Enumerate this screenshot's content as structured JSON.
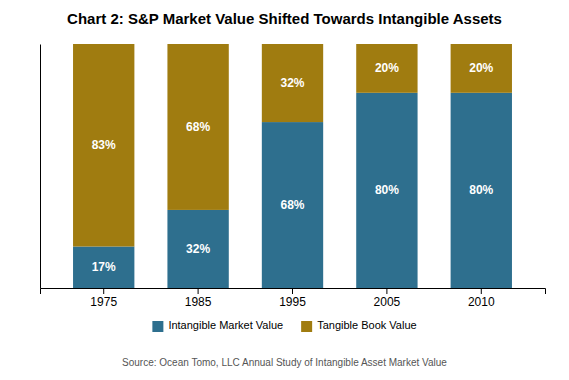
{
  "chart_data": {
    "type": "bar",
    "stacked": true,
    "title": "Chart 2: S&P Market Value Shifted Towards Intangible Assets",
    "categories": [
      "1975",
      "1985",
      "1995",
      "2005",
      "2010"
    ],
    "series": [
      {
        "name": "Intangible Market Value",
        "color": "#2e6f8e",
        "values": [
          17,
          32,
          68,
          80,
          80
        ],
        "value_labels": [
          "17%",
          "32%",
          "68%",
          "80%",
          "80%"
        ]
      },
      {
        "name": "Tangible Book Value",
        "color": "#a07c10",
        "values": [
          83,
          68,
          32,
          20,
          20
        ],
        "value_labels": [
          "83%",
          "68%",
          "32%",
          "20%",
          "20%"
        ]
      }
    ],
    "ylim": [
      0,
      100
    ],
    "grid": false,
    "legend": "bottom",
    "data_labels": true,
    "tick_labels": "x",
    "annotations": [
      "Source: Ocean Tomo, LLC Annual Study of Intangible Asset Market Value"
    ]
  }
}
